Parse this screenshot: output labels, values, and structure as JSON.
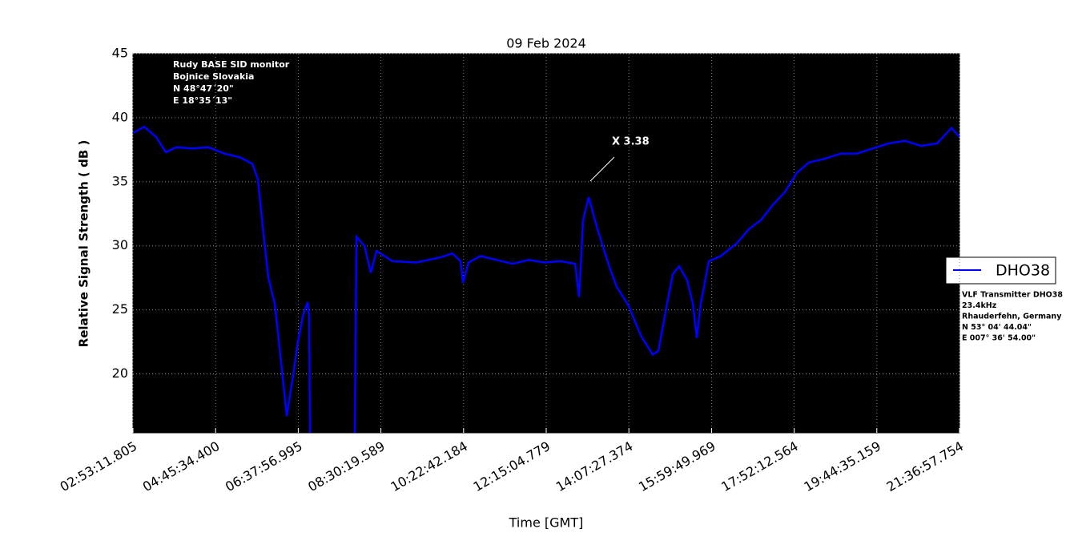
{
  "chart_data": {
    "type": "line",
    "title": "09 Feb 2024",
    "x_label": "Time [GMT]",
    "y_label": "Relative Signal Strength ( dB )",
    "annotation": "X 3.38",
    "station_info": [
      "Rudy BASE SID monitor",
      "Bojnice Slovakia",
      "N 48°47´20\"",
      "E 18°35´13\""
    ],
    "transmitter_info": [
      "VLF Transmitter DHO38",
      "23.4kHz",
      "Rhauderfehn, Germany",
      "N 53° 04' 44.04\"",
      "E 007° 36' 54.00\""
    ],
    "background": "#000000",
    "grid": true,
    "legend_position": "right",
    "xlim": [
      10391.805,
      77817.754
    ],
    "xticks": [
      {
        "value": 10391.805,
        "label": "02:53:11.805"
      },
      {
        "value": 17134.4,
        "label": "04:45:34.400"
      },
      {
        "value": 23876.995,
        "label": "06:37:56.995"
      },
      {
        "value": 30619.589,
        "label": "08:30:19.589"
      },
      {
        "value": 37362.184,
        "label": "10:22:42.184"
      },
      {
        "value": 44104.779,
        "label": "12:15:04.779"
      },
      {
        "value": 50847.374,
        "label": "14:07:27.374"
      },
      {
        "value": 57589.969,
        "label": "15:59:49.969"
      },
      {
        "value": 64332.564,
        "label": "17:52:12.564"
      },
      {
        "value": 71075.159,
        "label": "19:44:35.159"
      },
      {
        "value": 77817.754,
        "label": "21:36:57.754"
      }
    ],
    "ylim": [
      15.4,
      45
    ],
    "yticks": [
      20,
      25,
      30,
      35,
      40,
      45
    ],
    "x": [
      10392,
      11307,
      12287,
      13071,
      13920,
      15227,
      16533,
      17840,
      19147,
      20127,
      20584,
      20976,
      21434,
      21956,
      22414,
      22936,
      23394,
      23851,
      24243,
      24635,
      24766,
      24831,
      26660,
      28490,
      28620,
      29274,
      29796,
      30254,
      31561,
      33521,
      35481,
      36461,
      37114,
      37310,
      37767,
      38747,
      40054,
      41361,
      42667,
      43974,
      45281,
      46457,
      46784,
      47110,
      47568,
      48221,
      49201,
      49854,
      50834,
      51814,
      52794,
      53252,
      53774,
      54428,
      54950,
      55604,
      56061,
      56388,
      56715,
      57368,
      58348,
      59655,
      60635,
      61615,
      62595,
      63575,
      64555,
      65535,
      66841,
      68148,
      69455,
      70762,
      72068,
      73375,
      74682,
      75988,
      77164,
      77817
    ],
    "series": [
      {
        "name": "DHO38",
        "color": "#0000ff",
        "values": [
          38.8,
          39.3,
          38.5,
          37.3,
          37.7,
          37.6,
          37.7,
          37.2,
          36.9,
          36.4,
          35.2,
          31.5,
          27.5,
          25.5,
          21.5,
          16.7,
          19.5,
          22.5,
          24.5,
          25.6,
          24.5,
          15.4,
          null,
          15.4,
          30.7,
          30.0,
          27.9,
          29.6,
          28.8,
          28.7,
          29.1,
          29.4,
          28.8,
          27.1,
          28.7,
          29.2,
          28.9,
          28.6,
          28.9,
          28.7,
          28.8,
          28.6,
          26.0,
          32.0,
          33.8,
          31.5,
          28.5,
          26.8,
          25.3,
          23.0,
          21.5,
          21.8,
          24.5,
          27.8,
          28.4,
          27.3,
          25.5,
          22.8,
          25.5,
          28.8,
          29.2,
          30.2,
          31.3,
          32.0,
          33.2,
          34.2,
          35.7,
          36.5,
          36.8,
          37.2,
          37.2,
          37.6,
          38.0,
          38.2,
          37.8,
          38.0,
          39.2,
          38.5
        ]
      }
    ]
  }
}
